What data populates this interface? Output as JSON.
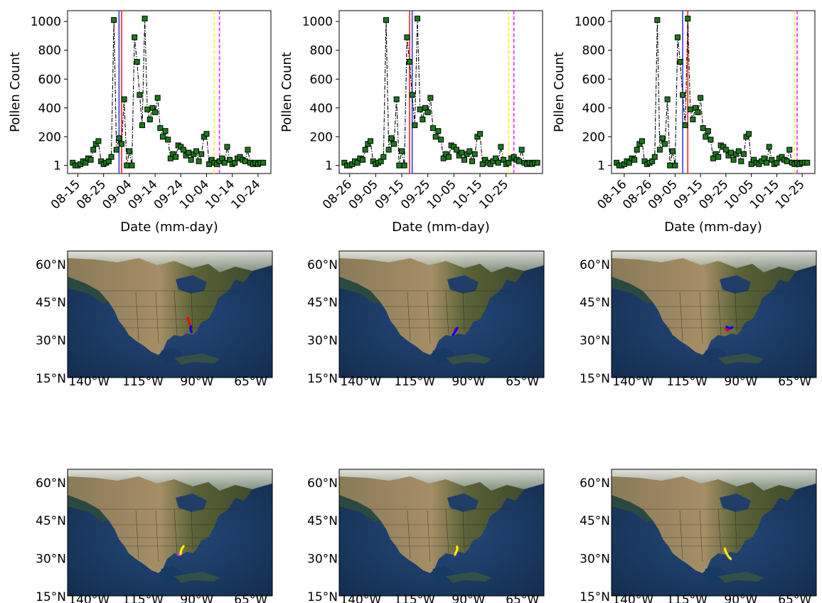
{
  "chart_data": [
    {
      "type": "line",
      "panel": "top-left",
      "xlabel": "Date (mm-day)",
      "ylabel": "Pollen Count",
      "x_tick_labels": [
        "08-15",
        "08-25",
        "09-04",
        "09-14",
        "09-24",
        "10-04",
        "10-14",
        "10-24"
      ],
      "y_tick_labels": [
        "1",
        "200",
        "400",
        "600",
        "800",
        "1000"
      ],
      "y_ticks": [
        1,
        200,
        400,
        600,
        800,
        1000
      ],
      "xlim": [
        "08-11",
        "10-29"
      ],
      "ylim": [
        -55,
        1075
      ],
      "series": [
        {
          "x": [
            "08-13",
            "08-14",
            "08-15",
            "08-16",
            "08-17",
            "08-18",
            "08-19",
            "08-20",
            "08-21",
            "08-22",
            "08-23",
            "08-24",
            "08-25",
            "08-26",
            "08-27",
            "08-28",
            "08-29",
            "08-30",
            "08-31",
            "09-01",
            "09-02",
            "09-03",
            "09-04",
            "09-05",
            "09-06",
            "09-07",
            "09-08",
            "09-09",
            "09-10",
            "09-11",
            "09-12",
            "09-13",
            "09-14",
            "09-15",
            "09-16",
            "09-17",
            "09-18",
            "09-19",
            "09-20",
            "09-21",
            "09-22",
            "09-23",
            "09-24",
            "09-25",
            "09-26",
            "09-27",
            "09-28",
            "09-29",
            "09-30",
            "10-01",
            "10-02",
            "10-03",
            "10-04",
            "10-05",
            "10-06",
            "10-07",
            "10-08",
            "10-09",
            "10-10",
            "10-11",
            "10-12",
            "10-13",
            "10-14",
            "10-15",
            "10-16",
            "10-17",
            "10-18",
            "10-19",
            "10-20",
            "10-21",
            "10-22",
            "10-23",
            "10-24",
            "10-25",
            "10-26"
          ],
          "values": [
            20,
            1,
            1,
            10,
            30,
            20,
            50,
            40,
            110,
            150,
            170,
            30,
            10,
            20,
            30,
            60,
            1010,
            110,
            190,
            150,
            460,
            1,
            100,
            1,
            890,
            720,
            490,
            280,
            1020,
            390,
            320,
            400,
            370,
            470,
            260,
            200,
            240,
            180,
            50,
            80,
            60,
            140,
            130,
            110,
            70,
            90,
            40,
            80,
            100,
            30,
            80,
            200,
            220,
            10,
            40,
            20,
            10,
            30,
            50,
            20,
            130,
            40,
            10,
            20,
            50,
            60,
            40,
            30,
            110,
            20,
            10,
            20,
            10,
            20,
            20
          ]
        }
      ],
      "vlines": [
        {
          "x": "08-31",
          "color": "#3b3bd9"
        },
        {
          "x": "09-01",
          "color": "#ff2020"
        },
        {
          "x": "10-07",
          "color": "#ffee20",
          "dashed": true
        },
        {
          "x": "10-09",
          "color": "#ff20ff",
          "dashed": true
        }
      ]
    },
    {
      "type": "line",
      "panel": "top-middle",
      "xlabel": "Date (mm-day)",
      "ylabel": "Pollen Count",
      "x_tick_labels": [
        "08-26",
        "09-05",
        "09-15",
        "09-25",
        "10-05",
        "10-15",
        "10-25"
      ],
      "y_tick_labels": [
        "1",
        "200",
        "400",
        "600",
        "800",
        "1000"
      ],
      "y_ticks": [
        1,
        200,
        400,
        600,
        800,
        1000
      ],
      "xlim": [
        "08-22",
        "11-08"
      ],
      "ylim": [
        -55,
        1075
      ],
      "series": [
        {
          "x": [
            "08-24",
            "08-25",
            "08-26",
            "08-27",
            "08-28",
            "08-29",
            "08-30",
            "08-31",
            "09-01",
            "09-02",
            "09-03",
            "09-04",
            "09-05",
            "09-06",
            "09-07",
            "09-08",
            "09-09",
            "09-10",
            "09-11",
            "09-12",
            "09-13",
            "09-14",
            "09-15",
            "09-16",
            "09-17",
            "09-18",
            "09-19",
            "09-20",
            "09-21",
            "09-22",
            "09-23",
            "09-24",
            "09-25",
            "09-26",
            "09-27",
            "09-28",
            "09-29",
            "09-30",
            "10-01",
            "10-02",
            "10-03",
            "10-04",
            "10-05",
            "10-06",
            "10-07",
            "10-08",
            "10-09",
            "10-10",
            "10-11",
            "10-12",
            "10-13",
            "10-14",
            "10-15",
            "10-16",
            "10-17",
            "10-18",
            "10-19",
            "10-20",
            "10-21",
            "10-22",
            "10-23",
            "10-24",
            "10-25",
            "10-26",
            "10-27",
            "10-28",
            "10-29",
            "10-30",
            "10-31",
            "11-01",
            "11-02",
            "11-03",
            "11-04",
            "11-05",
            "11-06"
          ],
          "values": [
            20,
            1,
            1,
            10,
            30,
            20,
            50,
            40,
            110,
            150,
            170,
            30,
            10,
            20,
            30,
            60,
            1010,
            110,
            190,
            150,
            460,
            1,
            100,
            1,
            890,
            720,
            490,
            280,
            1020,
            390,
            320,
            400,
            370,
            470,
            260,
            200,
            240,
            180,
            50,
            80,
            60,
            140,
            130,
            110,
            70,
            90,
            40,
            80,
            100,
            30,
            80,
            200,
            220,
            10,
            40,
            20,
            10,
            30,
            50,
            20,
            130,
            40,
            10,
            20,
            50,
            60,
            40,
            30,
            110,
            20,
            10,
            20,
            10,
            20,
            20
          ]
        }
      ],
      "vlines": [
        {
          "x": "09-18",
          "color": "#ff2020"
        },
        {
          "x": "09-19",
          "color": "#3b3bd9"
        },
        {
          "x": "10-26",
          "color": "#ffee20",
          "dashed": true
        },
        {
          "x": "10-28",
          "color": "#ff20ff",
          "dashed": true
        }
      ]
    },
    {
      "type": "line",
      "panel": "top-right",
      "xlabel": "Date (mm-day)",
      "ylabel": "Pollen Count",
      "x_tick_labels": [
        "08-16",
        "08-26",
        "09-05",
        "09-15",
        "09-25",
        "10-05",
        "10-15",
        "10-25"
      ],
      "y_tick_labels": [
        "1",
        "200",
        "400",
        "600",
        "800",
        "1000"
      ],
      "y_ticks": [
        1,
        200,
        400,
        600,
        800,
        1000
      ],
      "xlim": [
        "08-11",
        "10-30"
      ],
      "ylim": [
        -55,
        1075
      ],
      "series": [
        {
          "x": [
            "08-13",
            "08-14",
            "08-15",
            "08-16",
            "08-17",
            "08-18",
            "08-19",
            "08-20",
            "08-21",
            "08-22",
            "08-23",
            "08-24",
            "08-25",
            "08-26",
            "08-27",
            "08-28",
            "08-29",
            "08-30",
            "08-31",
            "09-01",
            "09-02",
            "09-03",
            "09-04",
            "09-05",
            "09-06",
            "09-07",
            "09-08",
            "09-09",
            "09-10",
            "09-11",
            "09-12",
            "09-13",
            "09-14",
            "09-15",
            "09-16",
            "09-17",
            "09-18",
            "09-19",
            "09-20",
            "09-21",
            "09-22",
            "09-23",
            "09-24",
            "09-25",
            "09-26",
            "09-27",
            "09-28",
            "09-29",
            "09-30",
            "10-01",
            "10-02",
            "10-03",
            "10-04",
            "10-05",
            "10-06",
            "10-07",
            "10-08",
            "10-09",
            "10-10",
            "10-11",
            "10-12",
            "10-13",
            "10-14",
            "10-15",
            "10-16",
            "10-17",
            "10-18",
            "10-19",
            "10-20",
            "10-21",
            "10-22",
            "10-23",
            "10-24",
            "10-25",
            "10-26",
            "10-27"
          ],
          "values": [
            20,
            1,
            1,
            10,
            30,
            20,
            50,
            40,
            110,
            150,
            170,
            30,
            10,
            20,
            30,
            60,
            1010,
            110,
            190,
            150,
            460,
            1,
            100,
            1,
            890,
            720,
            490,
            280,
            1020,
            390,
            320,
            400,
            370,
            470,
            260,
            200,
            240,
            180,
            50,
            80,
            60,
            140,
            130,
            110,
            70,
            90,
            40,
            80,
            100,
            30,
            80,
            200,
            220,
            10,
            40,
            20,
            10,
            30,
            50,
            20,
            130,
            40,
            10,
            20,
            50,
            60,
            40,
            30,
            110,
            20,
            10,
            20,
            10,
            20,
            20,
            20
          ]
        }
      ],
      "vlines": [
        {
          "x": "09-08",
          "color": "#3b3bd9"
        },
        {
          "x": "09-10",
          "color": "#ff2020"
        },
        {
          "x": "10-22",
          "color": "#ffee20",
          "dashed": true
        },
        {
          "x": "10-23",
          "color": "#ff20ff",
          "dashed": true
        }
      ]
    }
  ],
  "maps": {
    "lat_labels": [
      "60°N",
      "45°N",
      "30°N",
      "15°N"
    ],
    "lon_labels": [
      "140°W",
      "115°W",
      "90°W",
      "65°W"
    ],
    "extent": {
      "lon": [
        -150,
        -55
      ],
      "lat": [
        15,
        65
      ]
    },
    "panels": [
      {
        "position": "middle-left",
        "tracks": [
          {
            "color": "#ff0000",
            "points": [
              [
                -94.3,
                38.5
              ],
              [
                -93.8,
                37.4
              ],
              [
                -93.3,
                36.2
              ],
              [
                -92.8,
                35.2
              ]
            ]
          },
          {
            "color": "#0000ff",
            "points": [
              [
                -92.8,
                35.2
              ],
              [
                -93.0,
                34.2
              ],
              [
                -92.5,
                33.0
              ]
            ]
          }
        ]
      },
      {
        "position": "middle-center",
        "tracks": [
          {
            "color": "#ff0000",
            "points": [
              [
                -96.8,
                32.2
              ],
              [
                -96.4,
                33.4
              ],
              [
                -96.0,
                34.3
              ]
            ]
          },
          {
            "color": "#0000ff",
            "points": [
              [
                -97.2,
                31.8
              ],
              [
                -96.5,
                32.8
              ],
              [
                -95.7,
                33.8
              ],
              [
                -95.2,
                34.6
              ]
            ]
          }
        ]
      },
      {
        "position": "middle-right",
        "tracks": [
          {
            "color": "#ff0000",
            "points": [
              [
                -97.0,
                34.2
              ],
              [
                -96.3,
                33.6
              ],
              [
                -95.6,
                33.9
              ]
            ]
          },
          {
            "color": "#0000ff",
            "points": [
              [
                -96.6,
                35.0
              ],
              [
                -95.5,
                34.6
              ],
              [
                -94.6,
                34.5
              ],
              [
                -94.0,
                34.9
              ]
            ]
          }
        ]
      },
      {
        "position": "bottom-left",
        "tracks": [
          {
            "color": "#ff20ff",
            "points": [
              [
                -98.6,
                31.2
              ],
              [
                -97.6,
                31.5
              ]
            ]
          },
          {
            "color": "#ffee00",
            "points": [
              [
                -97.6,
                31.5
              ],
              [
                -97.4,
                32.6
              ],
              [
                -96.9,
                33.8
              ],
              [
                -96.2,
                34.6
              ]
            ]
          }
        ]
      },
      {
        "position": "bottom-center",
        "tracks": [
          {
            "color": "#ff20ff",
            "points": [
              [
                -96.4,
                31.0
              ],
              [
                -96.2,
                31.4
              ]
            ]
          },
          {
            "color": "#ffee00",
            "points": [
              [
                -96.2,
                31.4
              ],
              [
                -95.7,
                32.4
              ],
              [
                -95.2,
                33.4
              ],
              [
                -95.3,
                34.4
              ]
            ]
          }
        ]
      },
      {
        "position": "bottom-right",
        "tracks": [
          {
            "color": "#ff20ff",
            "points": [
              [
                -97.6,
                33.0
              ],
              [
                -97.4,
                33.6
              ]
            ]
          },
          {
            "color": "#ffee00",
            "points": [
              [
                -97.4,
                33.6
              ],
              [
                -97.0,
                32.4
              ],
              [
                -95.8,
                30.6
              ],
              [
                -94.7,
                29.6
              ]
            ]
          }
        ]
      }
    ]
  },
  "colors": {
    "marker_fill": "#1a7a1a",
    "marker_edge": "#000000",
    "ocean": "#1c3a66",
    "land_dry": "#a48c66",
    "land_green": "#4e5a30",
    "forest": "#2f3f26",
    "ice": "#e8eaea"
  }
}
